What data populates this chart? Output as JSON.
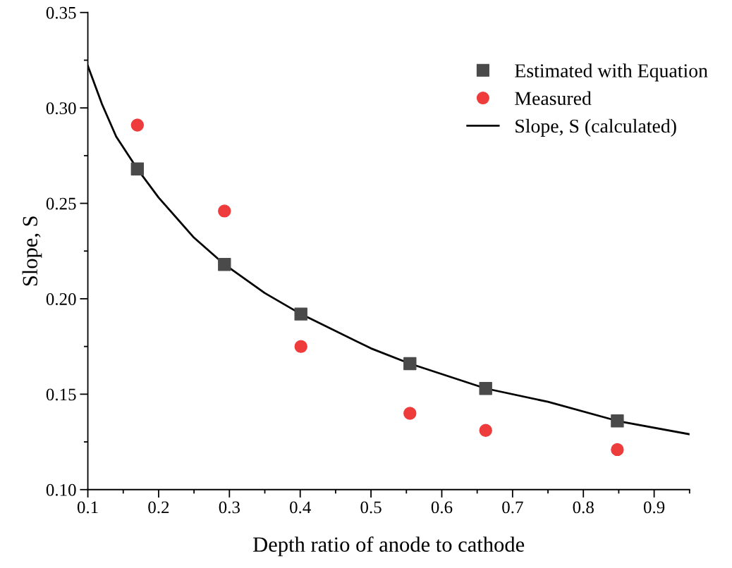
{
  "chart_data": {
    "type": "scatter",
    "xlabel": "Depth ratio of anode to cathode",
    "ylabel": "Slope, S",
    "xlim": [
      0.1,
      0.95
    ],
    "ylim": [
      0.1,
      0.35
    ],
    "xticks": [
      0.1,
      0.2,
      0.3,
      0.4,
      0.5,
      0.6,
      0.7,
      0.8,
      0.9
    ],
    "yticks": [
      {
        "value": 0.1,
        "label": "0.10"
      },
      {
        "value": 0.15,
        "label": "0.15"
      },
      {
        "value": 0.2,
        "label": "0.20"
      },
      {
        "value": 0.25,
        "label": "0.25"
      },
      {
        "value": 0.3,
        "label": "0.30"
      },
      {
        "value": 0.35,
        "label": "0.35"
      }
    ],
    "legend": "top right",
    "grid": false,
    "series": [
      {
        "name": "Estimated with Equation",
        "marker": "square",
        "color": "#4a4a4a",
        "x": [
          0.17,
          0.293,
          0.401,
          0.555,
          0.662,
          0.848
        ],
        "values": [
          0.268,
          0.218,
          0.192,
          0.166,
          0.153,
          0.136
        ]
      },
      {
        "name": "Measured",
        "marker": "circle",
        "color": "#ee3b3b",
        "x": [
          0.17,
          0.293,
          0.401,
          0.555,
          0.662,
          0.848
        ],
        "values": [
          0.291,
          0.246,
          0.175,
          0.14,
          0.131,
          0.121
        ]
      },
      {
        "name": "Slope, S (calculated)",
        "type": "line",
        "marker": "none",
        "color": "#000000",
        "x": [
          0.1,
          0.12,
          0.14,
          0.17,
          0.2,
          0.25,
          0.293,
          0.35,
          0.401,
          0.5,
          0.555,
          0.662,
          0.75,
          0.848,
          0.95
        ],
        "values": [
          0.322,
          0.302,
          0.285,
          0.268,
          0.253,
          0.232,
          0.218,
          0.203,
          0.192,
          0.174,
          0.166,
          0.153,
          0.146,
          0.136,
          0.129
        ]
      }
    ]
  }
}
